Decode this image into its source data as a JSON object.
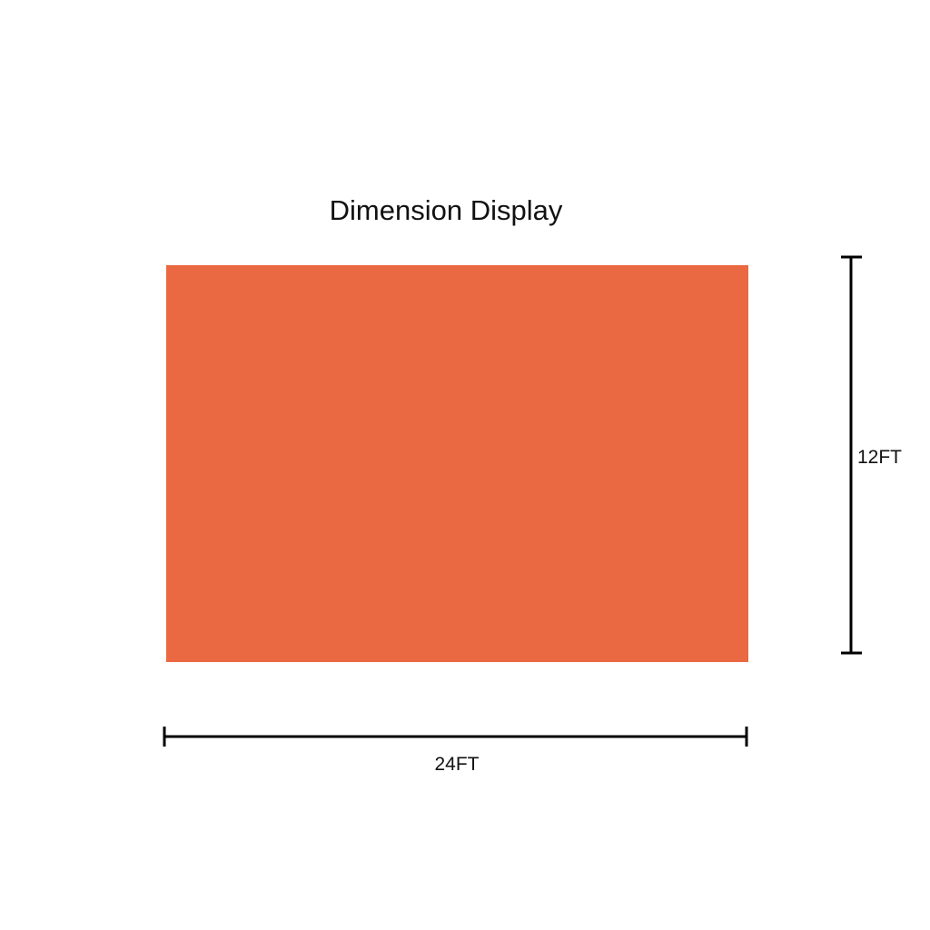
{
  "title": "Dimension Display",
  "panel": {
    "color": "#EA6942"
  },
  "dimensions": {
    "height_label": "12FT",
    "width_label": "24FT",
    "line_color": "#000000"
  }
}
